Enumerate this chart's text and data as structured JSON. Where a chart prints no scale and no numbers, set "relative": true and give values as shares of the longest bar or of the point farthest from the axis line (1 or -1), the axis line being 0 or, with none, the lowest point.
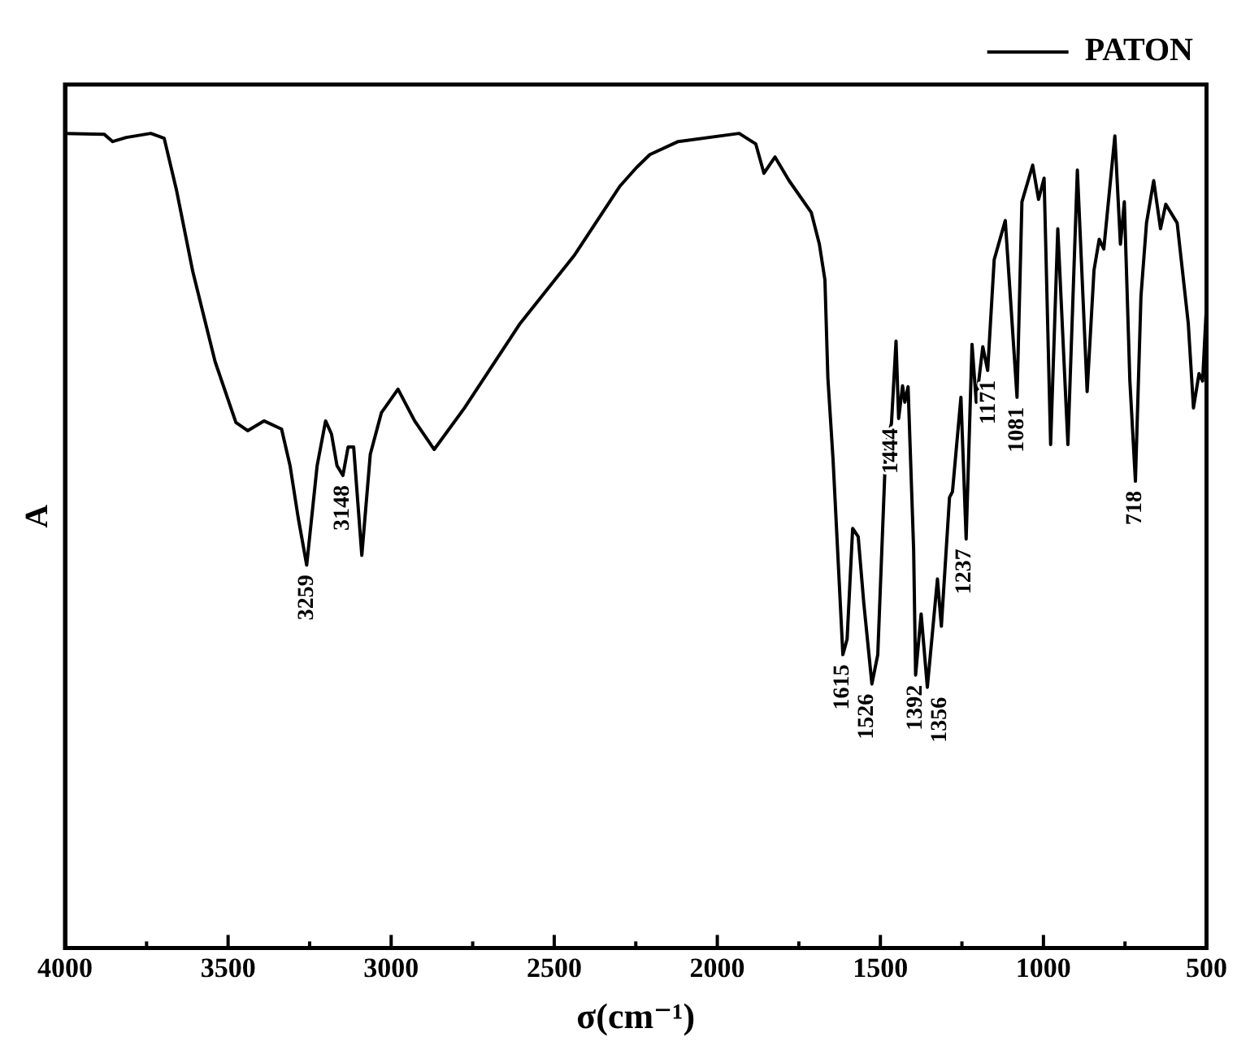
{
  "chart_data": {
    "type": "line",
    "relative": true,
    "xlabel": "σ(cm⁻¹)",
    "ylabel": "A",
    "legend": "top right",
    "marker": "none",
    "line_style": "solid",
    "grid": false,
    "xlim": [
      4000,
      500
    ],
    "xticks": [
      4000,
      {
        "value": 3750,
        "label": null
      },
      3500,
      {
        "value": 3250,
        "label": null
      },
      3000,
      {
        "value": 2750,
        "label": null
      },
      2500,
      {
        "value": 2250,
        "label": null
      },
      2000,
      {
        "value": 1750,
        "label": null
      },
      1500,
      {
        "value": 1250,
        "label": null
      },
      1000,
      {
        "value": 750,
        "label": null
      },
      500
    ],
    "series": [
      {
        "name": "PATON",
        "color": "#000000",
        "x": [
          4000,
          3880,
          3854,
          3812,
          3737,
          3696,
          3658,
          3608,
          3540,
          3476,
          3440,
          3390,
          3336,
          3310,
          3285,
          3259,
          3227,
          3201,
          3183,
          3166,
          3148,
          3132,
          3115,
          3090,
          3064,
          3030,
          2979,
          2928,
          2868,
          2775,
          2604,
          2437,
          2299,
          2248,
          2207,
          2120,
          1933,
          1882,
          1857,
          1823,
          1780,
          1712,
          1687,
          1670,
          1661,
          1645,
          1615,
          1602,
          1585,
          1568,
          1551,
          1526,
          1508,
          1483,
          1466,
          1452,
          1444,
          1432,
          1425,
          1415,
          1398,
          1392,
          1375,
          1356,
          1325,
          1313,
          1288,
          1279,
          1253,
          1237,
          1219,
          1206,
          1186,
          1171,
          1151,
          1117,
          1081,
          1066,
          1033,
          1015,
          998,
          978,
          956,
          925,
          896,
          866,
          845,
          829,
          815,
          781,
          764,
          752,
          735,
          718,
          701,
          684,
          662,
          641,
          625,
          590,
          556,
          540,
          523,
          512,
          500
        ],
        "values": [
          1.0,
          0.999,
          0.99,
          0.995,
          1.0,
          0.994,
          0.93,
          0.83,
          0.72,
          0.645,
          0.635,
          0.647,
          0.637,
          0.592,
          0.528,
          0.47,
          0.592,
          0.647,
          0.631,
          0.592,
          0.58,
          0.615,
          0.615,
          0.482,
          0.606,
          0.657,
          0.686,
          0.647,
          0.612,
          0.663,
          0.767,
          0.851,
          0.935,
          0.958,
          0.974,
          0.99,
          1.0,
          0.987,
          0.951,
          0.971,
          0.942,
          0.903,
          0.864,
          0.82,
          0.7,
          0.599,
          0.36,
          0.379,
          0.515,
          0.505,
          0.424,
          0.324,
          0.36,
          0.618,
          0.644,
          0.745,
          0.65,
          0.69,
          0.67,
          0.689,
          0.489,
          0.335,
          0.41,
          0.32,
          0.453,
          0.395,
          0.553,
          0.56,
          0.676,
          0.502,
          0.741,
          0.67,
          0.738,
          0.709,
          0.845,
          0.893,
          0.676,
          0.916,
          0.961,
          0.919,
          0.945,
          0.618,
          0.883,
          0.618,
          0.955,
          0.683,
          0.832,
          0.87,
          0.858,
          0.997,
          0.864,
          0.916,
          0.696,
          0.573,
          0.8,
          0.89,
          0.942,
          0.883,
          0.913,
          0.89,
          0.767,
          0.663,
          0.705,
          0.696,
          0.79
        ]
      }
    ],
    "annotations": [
      {
        "text": "3259",
        "x": 3259,
        "y": 0.47
      },
      {
        "text": "3148",
        "x": 3148,
        "y": 0.58
      },
      {
        "text": "1615",
        "x": 1615,
        "y": 0.36
      },
      {
        "text": "1526",
        "x": 1526,
        "y": 0.324
      },
      {
        "text": "1444",
        "x": 1444,
        "y": 0.65
      },
      {
        "text": "1392",
        "x": 1392,
        "y": 0.335
      },
      {
        "text": "1356",
        "x": 1356,
        "y": 0.32
      },
      {
        "text": "1237",
        "x": 1237,
        "y": 0.502
      },
      {
        "text": "1171",
        "x": 1171,
        "y": 0.709
      },
      {
        "text": "1081",
        "x": 1081,
        "y": 0.676
      },
      {
        "text": "718",
        "x": 718,
        "y": 0.573
      }
    ]
  }
}
